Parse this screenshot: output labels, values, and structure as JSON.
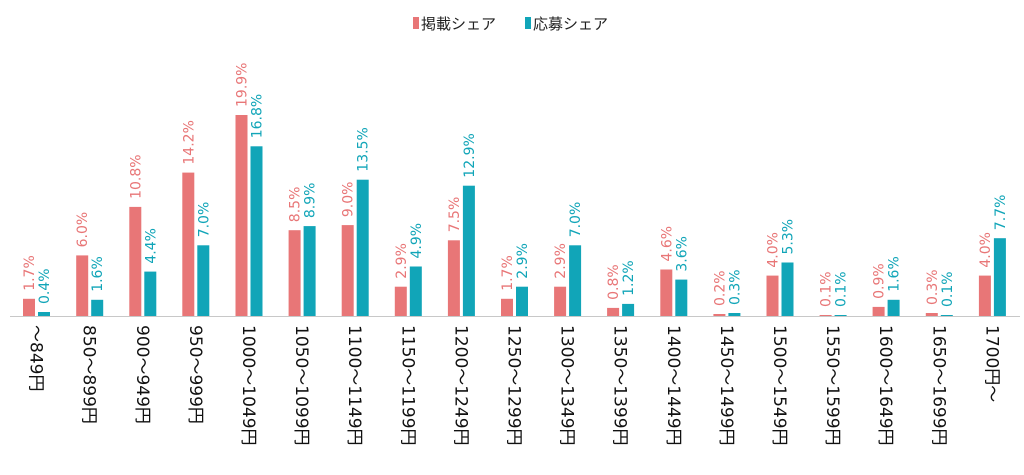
{
  "chart_data": {
    "type": "bar",
    "categories": [
      "～849円",
      "850～899円",
      "900～949円",
      "950～999円",
      "1000～1049円",
      "1050～1099円",
      "1100～1149円",
      "1150～1199円",
      "1200～1249円",
      "1250～1299円",
      "1300～1349円",
      "1350～1399円",
      "1400～1449円",
      "1450～1499円",
      "1500～1549円",
      "1550～1599円",
      "1600～1649円",
      "1650～1699円",
      "1700円～"
    ],
    "series": [
      {
        "name": "掲載シェア",
        "color": "#E87677",
        "values": [
          1.7,
          6.0,
          10.8,
          14.2,
          19.9,
          8.5,
          9.0,
          2.9,
          7.5,
          1.7,
          2.9,
          0.8,
          4.6,
          0.2,
          4.0,
          0.1,
          0.9,
          0.3,
          4.0
        ],
        "labels": [
          "1.7%",
          "6.0%",
          "10.8%",
          "14.2%",
          "19.9%",
          "8.5%",
          "9.0%",
          "2.9%",
          "7.5%",
          "1.7%",
          "2.9%",
          "0.8%",
          "4.6%",
          "0.2%",
          "4.0%",
          "0.1%",
          "0.9%",
          "0.3%",
          "4.0%"
        ]
      },
      {
        "name": "応募シェア",
        "color": "#11A5B8",
        "values": [
          0.4,
          1.6,
          4.4,
          7.0,
          16.8,
          8.9,
          13.5,
          4.9,
          12.9,
          2.9,
          7.0,
          1.2,
          3.6,
          0.3,
          5.3,
          0.1,
          1.6,
          0.1,
          7.7
        ],
        "labels": [
          "0.4%",
          "1.6%",
          "4.4%",
          "7.0%",
          "16.8%",
          "8.9%",
          "13.5%",
          "4.9%",
          "12.9%",
          "2.9%",
          "7.0%",
          "1.2%",
          "3.6%",
          "0.3%",
          "5.3%",
          "0.1%",
          "1.6%",
          "0.1%",
          "7.7%"
        ]
      }
    ],
    "legend_position": "top-center",
    "grid": false,
    "ylim": [
      0,
      20
    ]
  }
}
